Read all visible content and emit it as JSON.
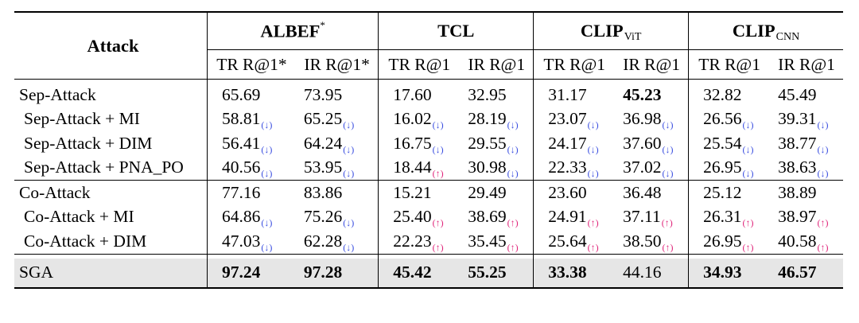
{
  "header": {
    "attack": "Attack",
    "models": [
      {
        "name": "ALBEF",
        "suffix": "*",
        "subscript": ""
      },
      {
        "name": "TCL",
        "suffix": "",
        "subscript": ""
      },
      {
        "name": "CLIP",
        "suffix": "",
        "subscript": "ViT"
      },
      {
        "name": "CLIP",
        "suffix": "",
        "subscript": "CNN"
      }
    ],
    "metrics": [
      "TR R@1*",
      "IR R@1*",
      "TR R@1",
      "IR R@1",
      "TR R@1",
      "IR R@1",
      "TR R@1",
      "IR R@1"
    ]
  },
  "arrow_colors": {
    "down": "#3b4fe0",
    "up": "#e0257a"
  },
  "highlight_bg": "#e6e6e6",
  "rows": [
    {
      "label": "Sep-Attack",
      "cells": [
        {
          "v": "65.69"
        },
        {
          "v": "73.95"
        },
        {
          "v": "17.60"
        },
        {
          "v": "32.95"
        },
        {
          "v": "31.17"
        },
        {
          "v": "45.23",
          "bold": true
        },
        {
          "v": "32.82"
        },
        {
          "v": "45.49"
        }
      ]
    },
    {
      "label": "Sep-Attack + MI",
      "cells": [
        {
          "v": "58.81",
          "a": "↓"
        },
        {
          "v": "65.25",
          "a": "↓"
        },
        {
          "v": "16.02",
          "a": "↓"
        },
        {
          "v": "28.19",
          "a": "↓"
        },
        {
          "v": "23.07",
          "a": "↓"
        },
        {
          "v": "36.98",
          "a": "↓"
        },
        {
          "v": "26.56",
          "a": "↓"
        },
        {
          "v": "39.31",
          "a": "↓"
        }
      ]
    },
    {
      "label": "Sep-Attack + DIM",
      "cells": [
        {
          "v": "56.41",
          "a": "↓"
        },
        {
          "v": "64.24",
          "a": "↓"
        },
        {
          "v": "16.75",
          "a": "↓"
        },
        {
          "v": "29.55",
          "a": "↓"
        },
        {
          "v": "24.17",
          "a": "↓"
        },
        {
          "v": "37.60",
          "a": "↓"
        },
        {
          "v": "25.54",
          "a": "↓"
        },
        {
          "v": "38.77",
          "a": "↓"
        }
      ]
    },
    {
      "label": "Sep-Attack + PNA_PO",
      "cells": [
        {
          "v": "40.56",
          "a": "↓"
        },
        {
          "v": "53.95",
          "a": "↓"
        },
        {
          "v": "18.44",
          "a": "↑"
        },
        {
          "v": "30.98",
          "a": "↓"
        },
        {
          "v": "22.33",
          "a": "↓"
        },
        {
          "v": "37.02",
          "a": "↓"
        },
        {
          "v": "26.95",
          "a": "↓"
        },
        {
          "v": "38.63",
          "a": "↓"
        }
      ]
    },
    {
      "label": "Co-Attack",
      "cells": [
        {
          "v": "77.16"
        },
        {
          "v": "83.86"
        },
        {
          "v": "15.21"
        },
        {
          "v": "29.49"
        },
        {
          "v": "23.60"
        },
        {
          "v": "36.48"
        },
        {
          "v": "25.12"
        },
        {
          "v": "38.89"
        }
      ]
    },
    {
      "label": "Co-Attack + MI",
      "cells": [
        {
          "v": "64.86",
          "a": "↓"
        },
        {
          "v": "75.26",
          "a": "↓"
        },
        {
          "v": "25.40",
          "a": "↑"
        },
        {
          "v": "38.69",
          "a": "↑"
        },
        {
          "v": "24.91",
          "a": "↑"
        },
        {
          "v": "37.11",
          "a": "↑"
        },
        {
          "v": "26.31",
          "a": "↑"
        },
        {
          "v": "38.97",
          "a": "↑"
        }
      ]
    },
    {
      "label": "Co-Attack + DIM",
      "cells": [
        {
          "v": "47.03",
          "a": "↓"
        },
        {
          "v": "62.28",
          "a": "↓"
        },
        {
          "v": "22.23",
          "a": "↑"
        },
        {
          "v": "35.45",
          "a": "↑"
        },
        {
          "v": "25.64",
          "a": "↑"
        },
        {
          "v": "38.50",
          "a": "↑"
        },
        {
          "v": "26.95",
          "a": "↑"
        },
        {
          "v": "40.58",
          "a": "↑"
        }
      ]
    },
    {
      "label": "SGA",
      "cells": [
        {
          "v": "97.24",
          "bold": true
        },
        {
          "v": "97.28",
          "bold": true
        },
        {
          "v": "45.42",
          "bold": true
        },
        {
          "v": "55.25",
          "bold": true
        },
        {
          "v": "33.38",
          "bold": true
        },
        {
          "v": "44.16"
        },
        {
          "v": "34.93",
          "bold": true
        },
        {
          "v": "46.57",
          "bold": true
        }
      ]
    }
  ]
}
